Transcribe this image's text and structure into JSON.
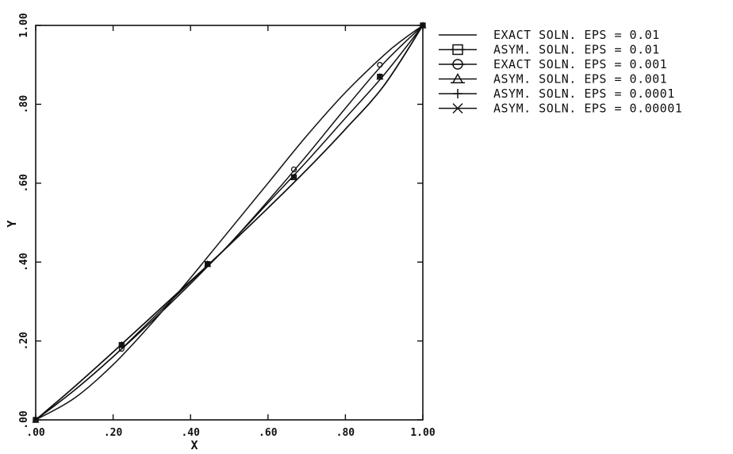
{
  "chart_data": {
    "type": "line",
    "title": "",
    "xlabel": "X",
    "ylabel": "Y",
    "xlim": [
      0,
      1
    ],
    "ylim": [
      0,
      1
    ],
    "grid": false,
    "legend_position": "top-right-outside",
    "x_ticks": [
      {
        "value": 0.0,
        "label": ".00"
      },
      {
        "value": 0.2,
        "label": ".20"
      },
      {
        "value": 0.4,
        "label": ".40"
      },
      {
        "value": 0.6,
        "label": ".60"
      },
      {
        "value": 0.8,
        "label": ".80"
      },
      {
        "value": 1.0,
        "label": "1.00"
      }
    ],
    "y_ticks": [
      {
        "value": 0.0,
        "label": ".00"
      },
      {
        "value": 0.2,
        "label": ".20"
      },
      {
        "value": 0.4,
        "label": ".40"
      },
      {
        "value": 0.6,
        "label": ".60"
      },
      {
        "value": 0.8,
        "label": ".80"
      },
      {
        "value": 1.0,
        "label": "1.00"
      }
    ],
    "series": [
      {
        "name": "EXACT SOLN.  EPS = 0.01",
        "marker": "none",
        "x": [
          0,
          0.1,
          0.2,
          0.3,
          0.4,
          0.45,
          0.5,
          0.6,
          0.7,
          0.8,
          0.9,
          0.95,
          1.0
        ],
        "y": [
          0,
          0.055,
          0.14,
          0.245,
          0.36,
          0.42,
          0.48,
          0.6,
          0.72,
          0.83,
          0.925,
          0.965,
          1.0
        ]
      },
      {
        "name": "ASYM. SOLN.  EPS = 0.01",
        "marker": "square",
        "x": [
          0,
          0.1,
          0.2,
          0.3,
          0.4,
          0.45,
          0.5,
          0.6,
          0.7,
          0.8,
          0.9,
          1.0
        ],
        "y": [
          0,
          0.075,
          0.16,
          0.25,
          0.345,
          0.395,
          0.445,
          0.55,
          0.655,
          0.765,
          0.875,
          1.0
        ],
        "marker_points": [
          [
            0,
            0
          ],
          [
            0.222,
            0.19
          ],
          [
            0.444,
            0.395
          ],
          [
            0.667,
            0.615
          ],
          [
            0.889,
            0.87
          ],
          [
            1.0,
            1.0
          ]
        ]
      },
      {
        "name": "EXACT SOLN.  EPS = 0.001",
        "marker": "circle",
        "x": [
          0,
          0.1,
          0.2,
          0.3,
          0.4,
          0.45,
          0.5,
          0.6,
          0.7,
          0.8,
          0.9,
          1.0
        ],
        "y": [
          0,
          0.075,
          0.16,
          0.255,
          0.35,
          0.395,
          0.445,
          0.555,
          0.67,
          0.79,
          0.905,
          1.0
        ],
        "marker_points": [
          [
            0,
            0
          ],
          [
            0.222,
            0.18
          ],
          [
            0.444,
            0.395
          ],
          [
            0.667,
            0.635
          ],
          [
            0.889,
            0.9
          ],
          [
            1.0,
            1.0
          ]
        ]
      },
      {
        "name": "ASYM. SOLN.  EPS = 0.001",
        "marker": "triangle",
        "x": [
          0,
          0.1,
          0.2,
          0.3,
          0.4,
          0.45,
          0.5,
          0.6,
          0.7,
          0.8,
          0.9,
          1.0
        ],
        "y": [
          0,
          0.084,
          0.172,
          0.262,
          0.352,
          0.397,
          0.443,
          0.537,
          0.634,
          0.737,
          0.848,
          1.0
        ],
        "marker_points": [
          [
            0,
            0
          ],
          [
            0.222,
            0.19
          ],
          [
            0.444,
            0.395
          ],
          [
            0.667,
            0.615
          ],
          [
            0.889,
            0.87
          ],
          [
            1.0,
            1.0
          ]
        ]
      },
      {
        "name": "ASYM. SOLN.  EPS = 0.0001",
        "marker": "plus",
        "x": [
          0,
          0.1,
          0.2,
          0.3,
          0.4,
          0.45,
          0.5,
          0.6,
          0.7,
          0.8,
          0.9,
          1.0
        ],
        "y": [
          0,
          0.084,
          0.172,
          0.262,
          0.352,
          0.397,
          0.443,
          0.537,
          0.634,
          0.737,
          0.848,
          1.0
        ],
        "marker_points": [
          [
            0,
            0
          ],
          [
            0.222,
            0.19
          ],
          [
            0.444,
            0.395
          ],
          [
            0.667,
            0.615
          ],
          [
            0.889,
            0.87
          ],
          [
            1.0,
            1.0
          ]
        ]
      },
      {
        "name": "ASYM. SOLN.  EPS = 0.00001",
        "marker": "x",
        "x": [
          0,
          0.1,
          0.2,
          0.3,
          0.4,
          0.45,
          0.5,
          0.6,
          0.7,
          0.8,
          0.9,
          1.0
        ],
        "y": [
          0,
          0.084,
          0.172,
          0.262,
          0.352,
          0.397,
          0.443,
          0.537,
          0.634,
          0.737,
          0.848,
          1.0
        ],
        "marker_points": [
          [
            0,
            0
          ],
          [
            0.222,
            0.19
          ],
          [
            0.444,
            0.395
          ],
          [
            0.667,
            0.615
          ],
          [
            0.889,
            0.87
          ],
          [
            1.0,
            1.0
          ]
        ]
      }
    ]
  }
}
